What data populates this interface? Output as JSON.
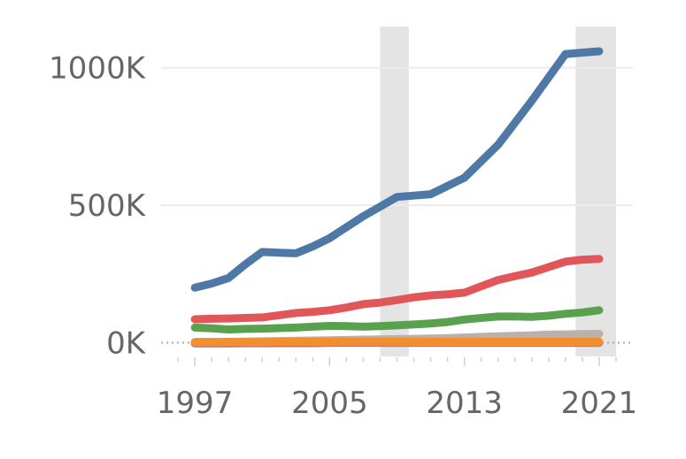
{
  "chart_data": {
    "type": "line",
    "title": "",
    "xlabel": "",
    "ylabel": "",
    "xlim": [
      1995,
      2023
    ],
    "ylim": [
      -50000,
      1150000
    ],
    "grid": true,
    "legend": "none",
    "yticks": [
      {
        "value": 1000000,
        "label": "1000K"
      },
      {
        "value": 500000,
        "label": "500K"
      },
      {
        "value": 0,
        "label": "0K"
      }
    ],
    "xticks": [
      {
        "value": 1997,
        "label": "1997"
      },
      {
        "value": 2005,
        "label": "2005"
      },
      {
        "value": 2013,
        "label": "2013"
      },
      {
        "value": 2021,
        "label": "2021"
      }
    ],
    "shaded_periods": [
      {
        "from": 2008,
        "to": 2009.7
      },
      {
        "from": 2019.6,
        "to": 2022
      }
    ],
    "x": [
      1997,
      1998,
      1999,
      2000,
      2001,
      2002,
      2003,
      2004,
      2005,
      2006,
      2007,
      2008,
      2009,
      2010,
      2011,
      2012,
      2013,
      2014,
      2015,
      2016,
      2017,
      2018,
      2019,
      2020,
      2021
    ],
    "series": [
      {
        "color": "#4e79a7",
        "values": [
          200000,
          215000,
          235000,
          285000,
          330000,
          327000,
          325000,
          350000,
          380000,
          420000,
          460000,
          495000,
          530000,
          535000,
          540000,
          570000,
          600000,
          660000,
          720000,
          800000,
          880000,
          965000,
          1050000,
          1055000,
          1060000
        ]
      },
      {
        "color": "#e15759",
        "values": [
          85000,
          87000,
          88000,
          90000,
          92000,
          100000,
          108000,
          112000,
          118000,
          128000,
          140000,
          146000,
          155000,
          165000,
          172000,
          176000,
          182000,
          205000,
          228000,
          242000,
          255000,
          275000,
          295000,
          302000,
          305000
        ]
      },
      {
        "color": "#59a14f",
        "values": [
          55000,
          52000,
          48000,
          50000,
          51000,
          53000,
          55000,
          58000,
          61000,
          60000,
          58000,
          60000,
          63000,
          66000,
          70000,
          75000,
          84000,
          90000,
          95000,
          95000,
          94000,
          98000,
          105000,
          110000,
          118000
        ]
      },
      {
        "color": "#bab0ac",
        "values": [
          3000,
          3000,
          3000,
          4000,
          5000,
          6000,
          7000,
          8000,
          9000,
          10000,
          11000,
          12000,
          13000,
          14000,
          15000,
          17000,
          19000,
          21000,
          23000,
          25000,
          27000,
          29000,
          30000,
          31000,
          32000
        ]
      },
      {
        "color": "#b07aa1",
        "values": [
          -3000,
          -3000,
          -3000,
          -2000,
          -2000,
          -2000,
          -2000,
          -2000,
          -1000,
          -1000,
          -1000,
          -1000,
          -1000,
          -1000,
          -1000,
          -1000,
          -1000,
          -1000,
          -1000,
          -1000,
          -1000,
          -1000,
          -1000,
          -1000,
          -1000
        ]
      },
      {
        "color": "#f28e2b",
        "values": [
          1000,
          1000,
          2000,
          2000,
          2000,
          3000,
          3000,
          3000,
          3000,
          4000,
          4000,
          4000,
          4000,
          3000,
          3000,
          3000,
          3000,
          3000,
          3000,
          3000,
          3000,
          3000,
          3000,
          3000,
          3000
        ]
      }
    ]
  }
}
